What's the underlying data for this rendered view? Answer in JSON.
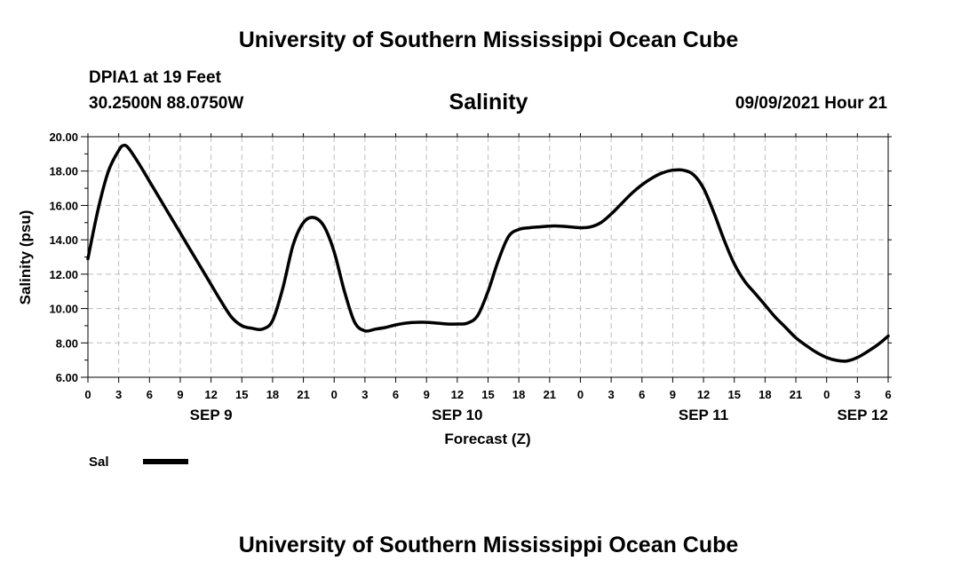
{
  "header": {
    "title": "University of Southern Mississippi Ocean Cube",
    "station": "DPIA1 at 19 Feet",
    "coords": "30.2500N  88.0750W",
    "variable": "Salinity",
    "datetime": "09/09/2021 Hour 21"
  },
  "footer": {
    "title": "University of Southern Mississippi Ocean Cube"
  },
  "chart_data": {
    "type": "line",
    "xlabel": "Forecast (Z)",
    "ylabel": "Salinity (psu)",
    "ylim": [
      6,
      20
    ],
    "xlim": [
      0,
      78
    ],
    "yticks": [
      "6.00",
      "8.00",
      "10.00",
      "12.00",
      "14.00",
      "16.00",
      "18.00",
      "20.00"
    ],
    "xtick_labels": [
      "0",
      "3",
      "6",
      "9",
      "12",
      "15",
      "18",
      "21",
      "0",
      "3",
      "6",
      "9",
      "12",
      "15",
      "18",
      "21",
      "0",
      "3",
      "6",
      "9",
      "12",
      "15",
      "18",
      "21",
      "0",
      "3",
      "6"
    ],
    "date_labels": [
      {
        "label": "SEP 9",
        "hour": 12
      },
      {
        "label": "SEP 10",
        "hour": 36
      },
      {
        "label": "SEP 11",
        "hour": 60
      },
      {
        "label": "SEP 12",
        "hour": 75.5
      }
    ],
    "grid": true,
    "legend": "bottom-left",
    "series": [
      {
        "name": "Sal",
        "color": "#000000",
        "x": [
          0,
          1,
          2,
          3,
          3.5,
          4,
          5,
          6,
          7,
          8,
          9,
          10,
          11,
          12,
          13,
          14,
          15,
          16,
          17,
          18,
          19,
          20,
          21,
          22,
          23,
          24,
          25,
          26,
          27,
          28,
          29,
          30,
          31,
          32,
          33,
          34,
          35,
          36,
          37,
          38,
          39,
          40,
          41,
          42,
          43,
          44,
          45,
          46,
          47,
          48,
          49,
          50,
          51,
          52,
          53,
          54,
          55,
          56,
          57,
          58,
          59,
          60,
          61,
          62,
          63,
          64,
          65,
          66,
          67,
          68,
          69,
          70,
          71,
          72,
          73,
          74,
          75,
          76,
          77,
          78
        ],
        "y": [
          12.9,
          15.8,
          18.0,
          19.2,
          19.5,
          19.3,
          18.4,
          17.4,
          16.4,
          15.4,
          14.4,
          13.4,
          12.4,
          11.4,
          10.4,
          9.5,
          9.0,
          8.85,
          8.8,
          9.3,
          11.2,
          13.7,
          15.0,
          15.3,
          14.8,
          13.3,
          11.0,
          9.2,
          8.7,
          8.8,
          8.9,
          9.05,
          9.15,
          9.2,
          9.2,
          9.15,
          9.1,
          9.1,
          9.15,
          9.6,
          11.0,
          12.8,
          14.2,
          14.6,
          14.7,
          14.75,
          14.8,
          14.8,
          14.75,
          14.7,
          14.75,
          15.0,
          15.5,
          16.1,
          16.7,
          17.2,
          17.6,
          17.9,
          18.05,
          18.05,
          17.8,
          17.0,
          15.6,
          14.0,
          12.6,
          11.6,
          10.9,
          10.2,
          9.5,
          8.9,
          8.3,
          7.85,
          7.45,
          7.15,
          6.98,
          6.95,
          7.15,
          7.5,
          7.9,
          8.4
        ]
      }
    ]
  }
}
